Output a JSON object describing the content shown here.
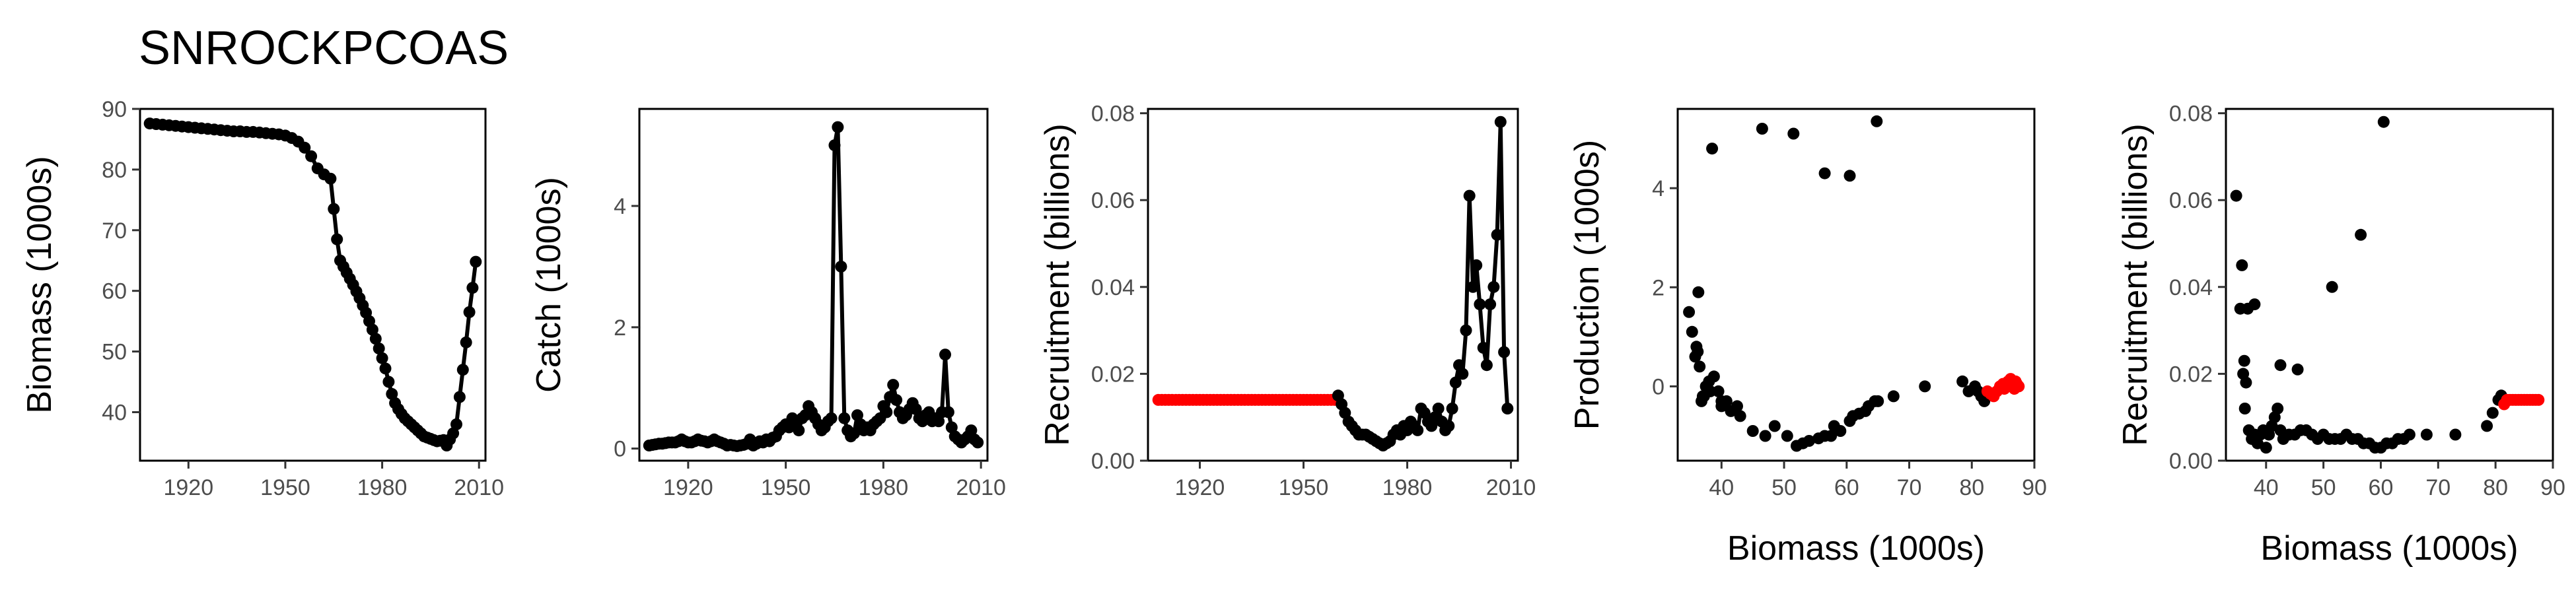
{
  "title": "SNROCKPCOAS",
  "colors": {
    "series": "#000000",
    "projection": "#ff0000",
    "frame": "#000000",
    "tick_text": "#4d4d4d"
  },
  "chart_data": [
    {
      "type": "line",
      "xlabel": "",
      "ylabel": "Biomass (1000s)",
      "xlim": [
        1905,
        2012
      ],
      "ylim": [
        32,
        90
      ],
      "xticks": [
        1920,
        1950,
        1980,
        2010
      ],
      "yticks": [
        40,
        50,
        60,
        70,
        80,
        90
      ],
      "series": [
        {
          "x": [
            1908,
            1910,
            1912,
            1914,
            1916,
            1918,
            1920,
            1922,
            1924,
            1926,
            1928,
            1930,
            1932,
            1934,
            1936,
            1938,
            1940,
            1942,
            1944,
            1946,
            1948,
            1950,
            1952,
            1954,
            1956,
            1958,
            1960,
            1962,
            1964,
            1965,
            1966,
            1967,
            1968,
            1969,
            1970,
            1971,
            1972,
            1973,
            1974,
            1975,
            1976,
            1977,
            1978,
            1979,
            1980,
            1981,
            1982,
            1983,
            1984,
            1985,
            1986,
            1987,
            1988,
            1989,
            1990,
            1991,
            1992,
            1993,
            1994,
            1995,
            1996,
            1997,
            1998,
            1999,
            2000,
            2001,
            2002,
            2003,
            2004,
            2005,
            2006,
            2007,
            2008,
            2009
          ],
          "y": [
            87.6,
            87.5,
            87.4,
            87.3,
            87.2,
            87.1,
            87.0,
            86.9,
            86.8,
            86.7,
            86.6,
            86.5,
            86.4,
            86.3,
            86.3,
            86.2,
            86.2,
            86.1,
            86.0,
            85.9,
            85.8,
            85.6,
            85.2,
            84.6,
            83.6,
            82.2,
            80.2,
            79.2,
            78.5,
            73.5,
            68.5,
            65.0,
            64.0,
            63.0,
            62.0,
            61.0,
            59.9,
            58.8,
            57.6,
            56.4,
            55.0,
            53.6,
            52.1,
            50.5,
            48.9,
            47.2,
            45.0,
            43.0,
            41.5,
            40.5,
            39.7,
            39.0,
            38.5,
            38.0,
            37.5,
            37.0,
            36.5,
            36.0,
            35.8,
            35.6,
            35.4,
            35.2,
            35.3,
            35.4,
            34.5,
            35.5,
            36.5,
            38.0,
            42.5,
            47.0,
            51.5,
            56.5,
            60.5,
            64.8
          ]
        }
      ]
    },
    {
      "type": "line",
      "xlabel": "",
      "ylabel": "Catch (1000s)",
      "xlim": [
        1905,
        2012
      ],
      "ylim": [
        -0.2,
        5.6
      ],
      "xticks": [
        1920,
        1950,
        1980,
        2010
      ],
      "yticks": [
        0,
        2,
        4
      ],
      "series": [
        {
          "x": [
            1908,
            1909,
            1910,
            1911,
            1912,
            1913,
            1914,
            1915,
            1916,
            1917,
            1918,
            1919,
            1920,
            1921,
            1922,
            1923,
            1924,
            1925,
            1926,
            1927,
            1928,
            1929,
            1930,
            1931,
            1932,
            1933,
            1934,
            1935,
            1936,
            1937,
            1938,
            1939,
            1940,
            1941,
            1942,
            1943,
            1944,
            1945,
            1946,
            1947,
            1948,
            1949,
            1950,
            1951,
            1952,
            1953,
            1954,
            1955,
            1956,
            1957,
            1958,
            1959,
            1960,
            1961,
            1962,
            1963,
            1964,
            1965,
            1966,
            1967,
            1968,
            1969,
            1970,
            1971,
            1972,
            1973,
            1974,
            1975,
            1976,
            1977,
            1978,
            1979,
            1980,
            1981,
            1982,
            1983,
            1984,
            1985,
            1986,
            1987,
            1988,
            1989,
            1990,
            1991,
            1992,
            1993,
            1994,
            1995,
            1996,
            1997,
            1998,
            1999,
            2000,
            2001,
            2002,
            2003,
            2004,
            2005,
            2006,
            2007,
            2008,
            2009
          ],
          "y": [
            0.05,
            0.06,
            0.07,
            0.08,
            0.08,
            0.09,
            0.1,
            0.1,
            0.1,
            0.12,
            0.15,
            0.12,
            0.1,
            0.1,
            0.12,
            0.15,
            0.13,
            0.12,
            0.1,
            0.12,
            0.15,
            0.12,
            0.1,
            0.08,
            0.05,
            0.06,
            0.05,
            0.04,
            0.05,
            0.06,
            0.08,
            0.15,
            0.05,
            0.08,
            0.12,
            0.1,
            0.15,
            0.12,
            0.18,
            0.2,
            0.3,
            0.35,
            0.4,
            0.35,
            0.5,
            0.45,
            0.3,
            0.5,
            0.55,
            0.7,
            0.6,
            0.5,
            0.4,
            0.3,
            0.35,
            0.45,
            0.5,
            5.0,
            5.3,
            3.0,
            0.5,
            0.3,
            0.2,
            0.25,
            0.55,
            0.4,
            0.3,
            0.35,
            0.3,
            0.4,
            0.45,
            0.5,
            0.7,
            0.6,
            0.85,
            1.05,
            0.8,
            0.6,
            0.5,
            0.55,
            0.65,
            0.75,
            0.65,
            0.5,
            0.45,
            0.55,
            0.6,
            0.45,
            0.5,
            0.45,
            0.6,
            1.55,
            0.6,
            0.35,
            0.2,
            0.15,
            0.1,
            0.15,
            0.2,
            0.3,
            0.15,
            0.1
          ]
        }
      ]
    },
    {
      "type": "line",
      "xlabel": "",
      "ylabel": "Recruitment (billions)",
      "xlim": [
        1905,
        2012
      ],
      "ylim": [
        0,
        0.081
      ],
      "xticks": [
        1920,
        1950,
        1980,
        2010
      ],
      "yticks": [
        0.0,
        0.02,
        0.04,
        0.06,
        0.08
      ],
      "ytick_labels": [
        "0.00",
        "0.02",
        "0.04",
        "0.06",
        "0.08"
      ],
      "series": [
        {
          "name": "projection",
          "color": "#ff0000",
          "x": [
            1908,
            1909,
            1910,
            1911,
            1912,
            1913,
            1914,
            1915,
            1916,
            1917,
            1918,
            1919,
            1920,
            1921,
            1922,
            1923,
            1924,
            1925,
            1926,
            1927,
            1928,
            1929,
            1930,
            1931,
            1932,
            1933,
            1934,
            1935,
            1936,
            1937,
            1938,
            1939,
            1940,
            1941,
            1942,
            1943,
            1944,
            1945,
            1946,
            1947,
            1948,
            1949,
            1950,
            1951,
            1952,
            1953,
            1954,
            1955,
            1956,
            1957,
            1958,
            1959
          ],
          "y": [
            0.014,
            0.014,
            0.014,
            0.014,
            0.014,
            0.014,
            0.014,
            0.014,
            0.014,
            0.014,
            0.014,
            0.014,
            0.014,
            0.014,
            0.014,
            0.014,
            0.014,
            0.014,
            0.014,
            0.014,
            0.014,
            0.014,
            0.014,
            0.014,
            0.014,
            0.014,
            0.014,
            0.014,
            0.014,
            0.014,
            0.014,
            0.014,
            0.014,
            0.014,
            0.014,
            0.014,
            0.014,
            0.014,
            0.014,
            0.014,
            0.014,
            0.014,
            0.014,
            0.014,
            0.014,
            0.014,
            0.014,
            0.014,
            0.014,
            0.014,
            0.014,
            0.014
          ]
        },
        {
          "name": "estimated",
          "color": "#000000",
          "x": [
            1960,
            1961,
            1962,
            1963,
            1964,
            1965,
            1966,
            1967,
            1968,
            1969,
            1970,
            1971,
            1972,
            1973,
            1974,
            1975,
            1976,
            1977,
            1978,
            1979,
            1980,
            1981,
            1982,
            1983,
            1984,
            1985,
            1986,
            1987,
            1988,
            1989,
            1990,
            1991,
            1992,
            1993,
            1994,
            1995,
            1996,
            1997,
            1998,
            1999,
            2000,
            2001,
            2002,
            2003,
            2004,
            2005,
            2006,
            2007,
            2008,
            2009
          ],
          "y": [
            0.015,
            0.013,
            0.011,
            0.009,
            0.008,
            0.007,
            0.006,
            0.006,
            0.006,
            0.0055,
            0.005,
            0.0045,
            0.004,
            0.0035,
            0.004,
            0.0045,
            0.006,
            0.007,
            0.006,
            0.008,
            0.007,
            0.009,
            0.008,
            0.007,
            0.012,
            0.011,
            0.009,
            0.008,
            0.01,
            0.012,
            0.009,
            0.007,
            0.008,
            0.012,
            0.018,
            0.022,
            0.02,
            0.03,
            0.061,
            0.04,
            0.045,
            0.036,
            0.026,
            0.022,
            0.036,
            0.04,
            0.052,
            0.078,
            0.025,
            0.012
          ]
        }
      ]
    },
    {
      "type": "scatter",
      "xlabel": "Biomass (1000s)",
      "ylabel": "Production (1000s)",
      "xlim": [
        33,
        90
      ],
      "ylim": [
        -1.5,
        5.6
      ],
      "xticks": [
        40,
        50,
        60,
        70,
        80,
        90
      ],
      "yticks": [
        0,
        2,
        4
      ],
      "series": [
        {
          "name": "estimated",
          "color": "#000000",
          "x": [
            34.8,
            35.3,
            35.8,
            36.0,
            36.2,
            36.5,
            36.8,
            37.2,
            37.5,
            38.0,
            38.2,
            38.8,
            39.5,
            40.0,
            40.8,
            41.5,
            42.5,
            43.0,
            45.0,
            47.0,
            48.5,
            50.5,
            52.0,
            53.0,
            54.0,
            55.5,
            56.5,
            57.5,
            58.0,
            59.0,
            60.5,
            61.0,
            62.0,
            63.0,
            63.5,
            64.5,
            65.0,
            67.5,
            72.5,
            78.5,
            79.5,
            80.5,
            81.0,
            81.5,
            82.0,
            36.3,
            38.5,
            40.0,
            51.5,
            56.5,
            60.5,
            37.0,
            46.5,
            64.8
          ],
          "y": [
            1.5,
            1.1,
            0.6,
            0.8,
            0.7,
            0.4,
            -0.3,
            -0.2,
            0.0,
            0.1,
            -0.1,
            0.2,
            -0.1,
            -0.4,
            -0.3,
            -0.5,
            -0.4,
            -0.6,
            -0.9,
            -1.0,
            -0.8,
            -1.0,
            -1.2,
            -1.15,
            -1.1,
            -1.05,
            -1.0,
            -1.0,
            -0.8,
            -0.9,
            -0.7,
            -0.6,
            -0.55,
            -0.5,
            -0.4,
            -0.3,
            -0.3,
            -0.2,
            0.0,
            0.1,
            -0.1,
            0.0,
            -0.1,
            -0.2,
            -0.3,
            1.9,
            4.8,
            -0.3,
            5.1,
            4.3,
            4.25,
            -0.2,
            5.2,
            5.35
          ]
        },
        {
          "name": "projection",
          "color": "#ff0000",
          "x": [
            82.5,
            83.0,
            83.5,
            84.0,
            84.5,
            85.0,
            85.2,
            85.5,
            85.8,
            86.0,
            86.2,
            86.4,
            86.6,
            86.8,
            87.0,
            87.2,
            87.5
          ],
          "y": [
            -0.1,
            -0.15,
            -0.2,
            -0.1,
            0.0,
            0.05,
            -0.05,
            0.0,
            0.1,
            0.05,
            0.15,
            0.0,
            0.05,
            -0.05,
            0.1,
            0.05,
            0.0
          ]
        }
      ]
    },
    {
      "type": "scatter",
      "xlabel": "Biomass (1000s)",
      "ylabel": "Recruitment (billions)",
      "xlim": [
        33,
        90
      ],
      "ylim": [
        0,
        0.081
      ],
      "xticks": [
        40,
        50,
        60,
        70,
        80,
        90
      ],
      "yticks": [
        0.0,
        0.02,
        0.04,
        0.06,
        0.08
      ],
      "ytick_labels": [
        "0.00",
        "0.02",
        "0.04",
        "0.06",
        "0.08"
      ],
      "series": [
        {
          "name": "estimated",
          "color": "#000000",
          "x": [
            34.8,
            35.5,
            36.0,
            36.3,
            36.8,
            37.0,
            37.5,
            38.0,
            38.5,
            39.0,
            39.5,
            40.0,
            40.5,
            41.0,
            41.5,
            42.0,
            42.5,
            43.0,
            44.0,
            45.0,
            46.0,
            47.0,
            48.0,
            49.0,
            50.0,
            51.0,
            52.0,
            53.0,
            54.0,
            55.0,
            56.0,
            57.0,
            58.0,
            59.0,
            60.0,
            61.0,
            62.0,
            63.0,
            64.0,
            65.0,
            68.0,
            73.0,
            78.5,
            79.5,
            80.5,
            81.0,
            36.2,
            51.5,
            56.5,
            60.5,
            38.0,
            35.8,
            36.5,
            42.5,
            45.5
          ],
          "y": [
            0.061,
            0.035,
            0.02,
            0.012,
            0.035,
            0.007,
            0.005,
            0.006,
            0.004,
            0.006,
            0.007,
            0.003,
            0.006,
            0.008,
            0.01,
            0.012,
            0.007,
            0.005,
            0.006,
            0.006,
            0.007,
            0.007,
            0.006,
            0.005,
            0.006,
            0.005,
            0.005,
            0.005,
            0.006,
            0.005,
            0.005,
            0.004,
            0.004,
            0.003,
            0.003,
            0.004,
            0.004,
            0.005,
            0.005,
            0.006,
            0.006,
            0.006,
            0.008,
            0.011,
            0.014,
            0.015,
            0.023,
            0.04,
            0.052,
            0.078,
            0.036,
            0.045,
            0.018,
            0.022,
            0.021
          ]
        },
        {
          "name": "projection",
          "color": "#ff0000",
          "x": [
            81.5,
            82.0,
            82.5,
            83.0,
            83.5,
            84.0,
            84.5,
            85.0,
            85.5,
            86.0,
            86.5,
            87.0,
            87.5
          ],
          "y": [
            0.013,
            0.014,
            0.014,
            0.014,
            0.014,
            0.014,
            0.014,
            0.014,
            0.014,
            0.014,
            0.014,
            0.014,
            0.014
          ]
        }
      ]
    }
  ]
}
